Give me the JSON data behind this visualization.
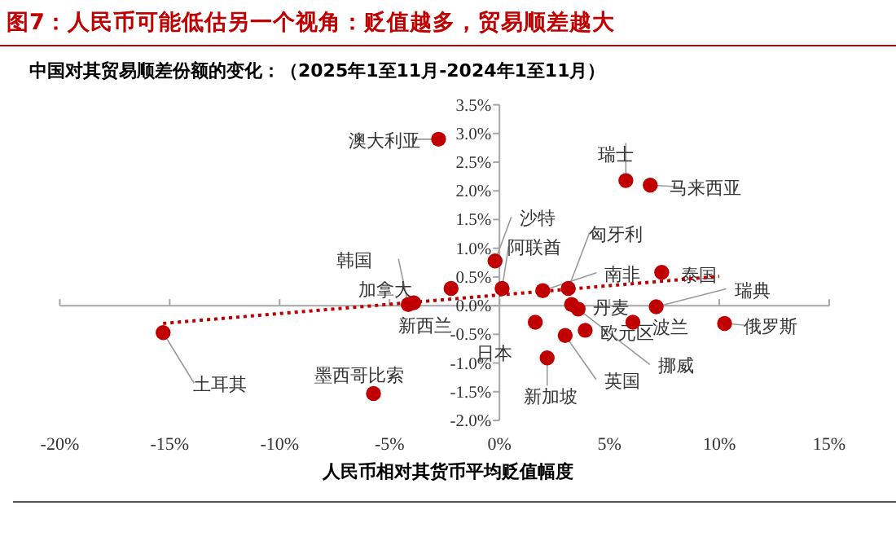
{
  "chart_data": {
    "type": "scatter",
    "title": "图7：人民币可能低估另一个视角：贬值越多，贸易顺差越大",
    "subtitle": "中国对其贸易顺差份额的变化：（2025年1至11月-2024年1至11月）",
    "xlabel": "人民币相对其货币平均贬值幅度",
    "xlim": [
      -20,
      15
    ],
    "ylim": [
      -2,
      3.5
    ],
    "xticks": [
      {
        "value": -20,
        "label": "-20%"
      },
      {
        "value": -15,
        "label": "-15%"
      },
      {
        "value": -10,
        "label": "-10%"
      },
      {
        "value": -5,
        "label": "-5%"
      },
      {
        "value": 0,
        "label": "0%"
      },
      {
        "value": 5,
        "label": "5%"
      },
      {
        "value": 10,
        "label": "10%"
      },
      {
        "value": 15,
        "label": "15%"
      }
    ],
    "yticks": [
      {
        "value": -2,
        "label": "-2.0%"
      },
      {
        "value": -1.5,
        "label": "-1.5%"
      },
      {
        "value": -1,
        "label": "-1.0%"
      },
      {
        "value": -0.5,
        "label": "-0.5%"
      },
      {
        "value": 0,
        "label": "0.0%"
      },
      {
        "value": 0.5,
        "label": "0.5%"
      },
      {
        "value": 1,
        "label": "1.0%"
      },
      {
        "value": 1.5,
        "label": "1.5%"
      },
      {
        "value": 2,
        "label": "2.0%"
      },
      {
        "value": 2.5,
        "label": "2.5%"
      },
      {
        "value": 3,
        "label": "3.0%"
      },
      {
        "value": 3.5,
        "label": "3.5%"
      }
    ],
    "series": [
      {
        "marker": "circle",
        "color": "#c00000",
        "x": [
          -2.77,
          -4.15,
          -3.9,
          -2.2,
          -0.2,
          0.12,
          1.97,
          3.13,
          5.75,
          6.86,
          7.38,
          7.13,
          10.24,
          6.07,
          3.28,
          3.58,
          3.9,
          1.63,
          2.99,
          2.17,
          -15.3,
          -5.73
        ],
        "values": [
          2.9,
          0.02,
          0.05,
          0.3,
          0.78,
          0.3,
          0.26,
          0.3,
          2.18,
          2.1,
          0.58,
          -0.02,
          -0.31,
          -0.29,
          0.02,
          -0.06,
          -0.43,
          -0.29,
          -0.52,
          -0.91,
          -0.47,
          -1.53
        ]
      },
      {
        "type": "line",
        "color": "#c00000",
        "line_style": "dotted",
        "x": [
          -15.3,
          10.0
        ],
        "values": [
          -0.31,
          0.51
        ]
      }
    ],
    "annotations": [
      {
        "text": "澳大利亚",
        "x": -2.77,
        "y": 2.9
      },
      {
        "text": "韩国",
        "x": -4.15,
        "y": 0.02
      },
      {
        "text": "新西兰",
        "x": -3.9,
        "y": 0.05
      },
      {
        "text": "加拿大",
        "x": -2.2,
        "y": 0.3
      },
      {
        "text": "沙特",
        "x": -0.2,
        "y": 0.78
      },
      {
        "text": "阿联酋",
        "x": 0.12,
        "y": 0.3
      },
      {
        "text": "南非",
        "x": 1.97,
        "y": 0.26
      },
      {
        "text": "匈牙利",
        "x": 3.13,
        "y": 0.3
      },
      {
        "text": "瑞士",
        "x": 5.75,
        "y": 2.18
      },
      {
        "text": "马来西亚",
        "x": 6.86,
        "y": 2.1
      },
      {
        "text": "泰国",
        "x": 7.38,
        "y": 0.58
      },
      {
        "text": "瑞典",
        "x": 7.13,
        "y": -0.02
      },
      {
        "text": "俄罗斯",
        "x": 10.24,
        "y": -0.31
      },
      {
        "text": "波兰",
        "x": 6.07,
        "y": -0.29
      },
      {
        "text": "丹麦",
        "x": 3.28,
        "y": 0.02
      },
      {
        "text": "挪威",
        "x": 3.58,
        "y": -0.06
      },
      {
        "text": "欧元区",
        "x": 3.9,
        "y": -0.43
      },
      {
        "text": "日本",
        "x": 1.63,
        "y": -0.29
      },
      {
        "text": "英国",
        "x": 2.99,
        "y": -0.52
      },
      {
        "text": "新加坡",
        "x": 2.17,
        "y": -0.91
      },
      {
        "text": "土耳其",
        "x": -15.3,
        "y": -0.47
      },
      {
        "text": "墨西哥比索",
        "x": -5.73,
        "y": -1.53
      }
    ]
  }
}
